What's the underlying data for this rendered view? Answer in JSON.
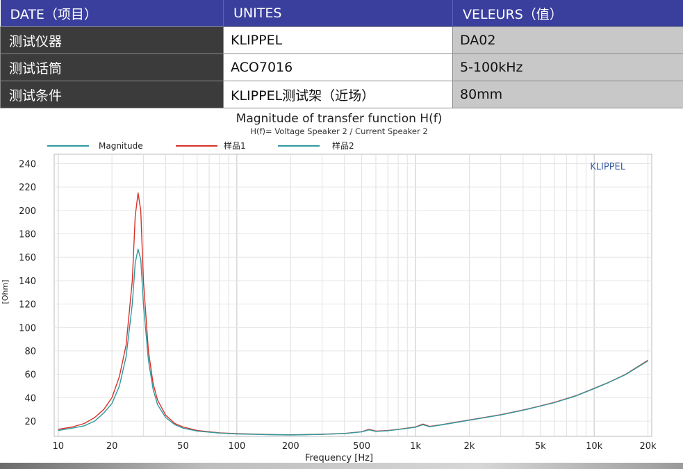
{
  "table": {
    "headers": [
      "DATE（项目）",
      "UNITES",
      "VELEURS（值）"
    ],
    "rows": [
      [
        "测试仪器",
        "KLIPPEL",
        "DA02"
      ],
      [
        "测试话筒",
        "ACO7016",
        "5-100kHz"
      ],
      [
        "测试条件",
        "KLIPPEL测试架（近场）",
        "80mm"
      ]
    ]
  },
  "chart_data": {
    "type": "line",
    "title": "Magnitude of transfer function H(f)",
    "subtitle": "H(f)= Voltage Speaker 2 / Current Speaker 2",
    "xlabel": "Frequency [Hz]",
    "ylabel": "[Ohm]",
    "watermark": "KLIPPEL",
    "xscale": "log",
    "xlim": [
      9.5,
      21000
    ],
    "ylim": [
      7,
      248
    ],
    "grid": true,
    "legend_position": "top-left",
    "xticks": [
      10,
      20,
      50,
      100,
      200,
      500,
      1000,
      2000,
      5000,
      10000,
      20000
    ],
    "xticklabels": [
      "10",
      "20",
      "50",
      "100",
      "200",
      "500",
      "1k",
      "2k",
      "5k",
      "10k",
      "20k"
    ],
    "yticks": [
      20,
      40,
      60,
      80,
      100,
      120,
      140,
      160,
      180,
      200,
      220,
      240
    ],
    "series": [
      {
        "name": "Magnitude",
        "color": "#2e9a9e",
        "x": [],
        "y": []
      },
      {
        "name": "样品1",
        "color": "#d9302a",
        "x": [
          10,
          12,
          14,
          16,
          18,
          20,
          22,
          24,
          26,
          27,
          28,
          29,
          30,
          32,
          34,
          36,
          40,
          45,
          50,
          60,
          80,
          100,
          150,
          200,
          300,
          400,
          500,
          550,
          600,
          700,
          800,
          1000,
          1100,
          1200,
          1400,
          1600,
          2000,
          3000,
          4000,
          5000,
          6000,
          8000,
          10000,
          12000,
          15000,
          20000
        ],
        "y": [
          13,
          15,
          18,
          23,
          30,
          40,
          58,
          85,
          140,
          195,
          215,
          200,
          140,
          80,
          52,
          38,
          25,
          18,
          15,
          12,
          10,
          9.3,
          8.6,
          8.3,
          8.8,
          9.5,
          11,
          13,
          11.5,
          12,
          13,
          15,
          17.5,
          15.5,
          17,
          18.5,
          21,
          25.5,
          29.5,
          33,
          36,
          42,
          48,
          53,
          60,
          72
        ]
      },
      {
        "name": "样品2",
        "color": "#2e9a9e",
        "x": [
          10,
          12,
          14,
          16,
          18,
          20,
          22,
          24,
          26,
          27,
          28,
          29,
          30,
          32,
          34,
          36,
          40,
          45,
          50,
          60,
          80,
          100,
          150,
          200,
          300,
          400,
          500,
          550,
          600,
          700,
          800,
          1000,
          1100,
          1200,
          1400,
          1600,
          2000,
          3000,
          4000,
          5000,
          6000,
          8000,
          10000,
          12000,
          15000,
          20000
        ],
        "y": [
          12,
          14,
          16,
          20,
          27,
          35,
          50,
          75,
          120,
          155,
          167,
          158,
          120,
          72,
          47,
          34,
          23,
          17,
          14,
          11.5,
          9.8,
          9.1,
          8.5,
          8.2,
          8.7,
          9.4,
          10.8,
          12.5,
          11.2,
          11.8,
          12.8,
          14.8,
          17,
          15.2,
          16.8,
          18.3,
          20.8,
          25.3,
          29.3,
          32.8,
          35.8,
          41.8,
          47.8,
          52.8,
          59.8,
          71.5
        ]
      }
    ]
  }
}
